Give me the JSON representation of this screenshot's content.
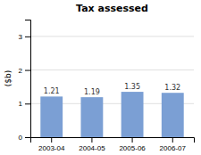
{
  "chart_data": {
    "type": "bar",
    "title": "Tax assessed",
    "ylabel": "($b)",
    "categories": [
      "2003-04",
      "2004-05",
      "2005-06",
      "2006-07"
    ],
    "values": [
      1.21,
      1.19,
      1.35,
      1.32
    ],
    "color": "#7b9fd4",
    "ylim": [
      0,
      3.5
    ],
    "yticks": [
      0,
      1,
      2,
      3
    ],
    "grid": true,
    "data_labels": true
  }
}
